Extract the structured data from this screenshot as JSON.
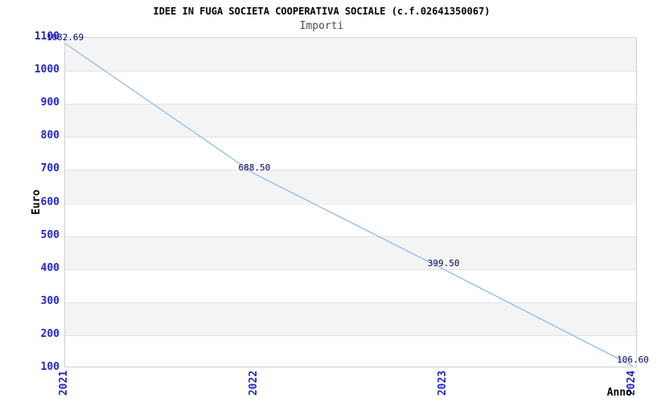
{
  "header": {
    "title": "IDEE IN FUGA SOCIETA COOPERATIVA SOCIALE (c.f.02641350067)",
    "subtitle": "Importi"
  },
  "chart_data": {
    "type": "line",
    "x": [
      "2021",
      "2022",
      "2023",
      "2024"
    ],
    "values": [
      1082.69,
      688.5,
      399.5,
      106.6
    ],
    "point_labels": [
      "1082.69",
      "688.50",
      "399.50",
      "106.60"
    ],
    "title": "IDEE IN FUGA SOCIETA COOPERATIVA SOCIALE (c.f.02641350067)",
    "subtitle": "Importi",
    "xlabel": "Anno",
    "ylabel": "Euro",
    "ylim": [
      100,
      1100
    ],
    "ytick_step": 100,
    "yticks": [
      100,
      200,
      300,
      400,
      500,
      600,
      700,
      800,
      900,
      1000,
      1100
    ],
    "grid": "horizontal",
    "background_bands": "alternating gray/white horizontal bands",
    "legend": "none",
    "colors": {
      "line": "#8fbbe8",
      "tick_label": "#2424cd",
      "point_label": "#000073",
      "band_gray": "#f4f4f4",
      "gridline": "#e2e2e2",
      "plot_border": "#cfcfcf",
      "title": "#000000",
      "subtitle": "#4d4d4d"
    }
  }
}
